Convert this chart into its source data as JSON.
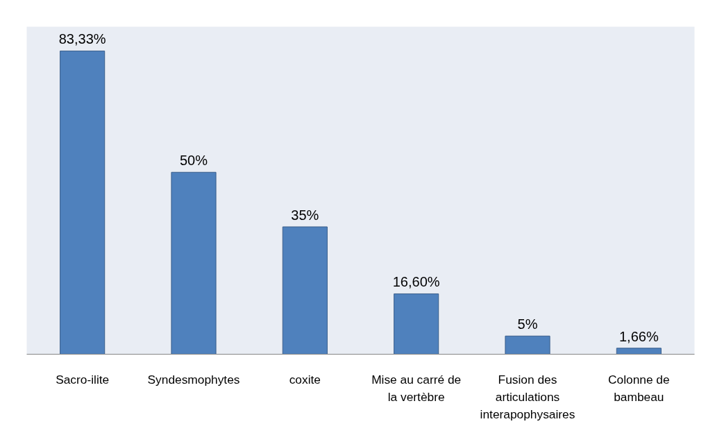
{
  "chart_data": {
    "type": "bar",
    "categories": [
      "Sacro-ilite",
      "Syndesmophytes",
      "coxite",
      "Mise au carré de la vertèbre",
      "Fusion des articulations interapophysaires",
      "Colonne de bambeau"
    ],
    "values": [
      83.33,
      50,
      35,
      16.6,
      5,
      1.66
    ],
    "value_labels": [
      "83,33%",
      "50%",
      "35%",
      "16,60%",
      "5%",
      "1,66%"
    ],
    "color": "#4f81bd",
    "grid": false
  }
}
